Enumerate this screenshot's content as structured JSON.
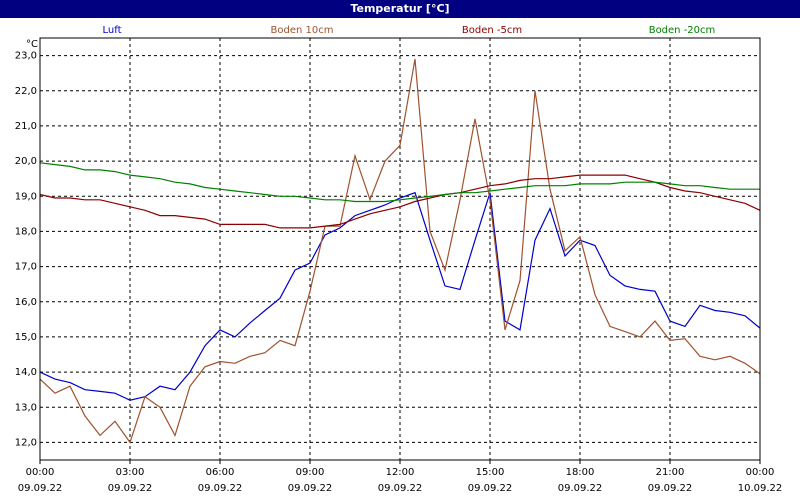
{
  "chart_data": {
    "type": "line",
    "title": "Temperatur [°C]",
    "y_unit_label": "°C",
    "x": [
      0,
      0.5,
      1,
      1.5,
      2,
      2.5,
      3,
      3.5,
      4,
      4.5,
      5,
      5.5,
      6,
      6.5,
      7,
      7.5,
      8,
      8.5,
      9,
      9.5,
      10,
      10.5,
      11,
      11.5,
      12,
      12.5,
      13,
      13.5,
      14,
      14.5,
      15,
      15.5,
      16,
      16.5,
      17,
      17.5,
      18,
      18.5,
      19,
      19.5,
      20,
      20.5,
      21,
      21.5,
      22,
      22.5,
      23,
      23.5,
      24
    ],
    "xlim": [
      0,
      24
    ],
    "xticks": [
      {
        "value": 0,
        "label": "00:00\n09.09.22"
      },
      {
        "value": 3,
        "label": "03:00\n09.09.22"
      },
      {
        "value": 6,
        "label": "06:00\n09.09.22"
      },
      {
        "value": 9,
        "label": "09:00\n09.09.22"
      },
      {
        "value": 12,
        "label": "12:00\n09.09.22"
      },
      {
        "value": 15,
        "label": "15:00\n09.09.22"
      },
      {
        "value": 18,
        "label": "18:00\n09.09.22"
      },
      {
        "value": 21,
        "label": "21:00\n09.09.22"
      },
      {
        "value": 24,
        "label": "00:00\n10.09.22"
      }
    ],
    "ylim": [
      11.5,
      23.5
    ],
    "yticks": [
      {
        "value": 12,
        "label": "12,0"
      },
      {
        "value": 13,
        "label": "13,0"
      },
      {
        "value": 14,
        "label": "14,0"
      },
      {
        "value": 15,
        "label": "15,0"
      },
      {
        "value": 16,
        "label": "16,0"
      },
      {
        "value": 17,
        "label": "17,0"
      },
      {
        "value": 18,
        "label": "18,0"
      },
      {
        "value": 19,
        "label": "19,0"
      },
      {
        "value": 20,
        "label": "20,0"
      },
      {
        "value": 21,
        "label": "21,0"
      },
      {
        "value": 22,
        "label": "22,0"
      },
      {
        "value": 23,
        "label": "23,0"
      }
    ],
    "grid": true,
    "series": [
      {
        "name": "Luft",
        "color": "#0000cc",
        "values": [
          14.0,
          13.8,
          13.7,
          13.5,
          13.45,
          13.4,
          13.2,
          13.3,
          13.6,
          13.5,
          14.0,
          14.75,
          15.2,
          15.0,
          15.4,
          15.75,
          16.1,
          16.9,
          17.1,
          17.9,
          18.1,
          18.45,
          18.6,
          18.75,
          18.95,
          19.1,
          17.75,
          16.45,
          16.35,
          17.75,
          19.1,
          15.45,
          15.2,
          17.75,
          18.65,
          17.3,
          17.75,
          17.6,
          16.75,
          16.45,
          16.35,
          16.3,
          15.45,
          15.3,
          15.9,
          15.75,
          15.7,
          15.6,
          15.25
        ]
      },
      {
        "name": "Boden 10cm",
        "color": "#a0522d",
        "values": [
          13.8,
          13.4,
          13.6,
          12.75,
          12.2,
          12.6,
          12.0,
          13.3,
          13.0,
          12.2,
          13.6,
          14.15,
          14.3,
          14.25,
          14.45,
          14.55,
          14.9,
          14.75,
          16.3,
          18.15,
          18.15,
          20.15,
          18.9,
          20.0,
          20.45,
          22.9,
          18.0,
          16.9,
          18.9,
          21.2,
          18.9,
          15.2,
          16.6,
          22.0,
          19.2,
          17.45,
          17.85,
          16.2,
          15.3,
          15.15,
          15.0,
          15.45,
          14.9,
          14.95,
          14.45,
          14.35,
          14.45,
          14.25,
          13.95
        ]
      },
      {
        "name": "Boden -5cm",
        "color": "#8b0000",
        "values": [
          19.05,
          18.95,
          18.95,
          18.9,
          18.9,
          18.8,
          18.7,
          18.6,
          18.45,
          18.45,
          18.4,
          18.35,
          18.2,
          18.2,
          18.2,
          18.2,
          18.1,
          18.1,
          18.1,
          18.15,
          18.2,
          18.35,
          18.5,
          18.6,
          18.7,
          18.85,
          18.95,
          19.05,
          19.1,
          19.2,
          19.3,
          19.35,
          19.45,
          19.5,
          19.5,
          19.55,
          19.6,
          19.6,
          19.6,
          19.6,
          19.5,
          19.4,
          19.25,
          19.15,
          19.1,
          19.0,
          18.9,
          18.8,
          18.6
        ]
      },
      {
        "name": "Boden -20cm",
        "color": "#008000",
        "values": [
          19.95,
          19.9,
          19.85,
          19.75,
          19.75,
          19.7,
          19.6,
          19.55,
          19.5,
          19.4,
          19.35,
          19.25,
          19.2,
          19.15,
          19.1,
          19.05,
          19.0,
          19.0,
          18.95,
          18.9,
          18.9,
          18.85,
          18.85,
          18.85,
          18.9,
          18.95,
          19.0,
          19.05,
          19.1,
          19.1,
          19.15,
          19.2,
          19.25,
          19.3,
          19.3,
          19.3,
          19.35,
          19.35,
          19.35,
          19.4,
          19.4,
          19.4,
          19.35,
          19.3,
          19.3,
          19.25,
          19.2,
          19.2,
          19.2
        ]
      }
    ]
  }
}
